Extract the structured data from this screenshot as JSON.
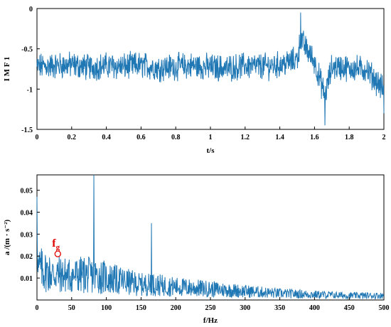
{
  "chart_data": [
    {
      "type": "line",
      "title": "",
      "xlabel": "t/s",
      "ylabel": "I M F 1",
      "xlim": [
        0,
        2
      ],
      "ylim": [
        -1.5,
        0
      ],
      "xticks": [
        "0",
        "0.2",
        "0.4",
        "0.6",
        "0.8",
        "1",
        "1.2",
        "1.4",
        "1.6",
        "1.8",
        "2"
      ],
      "yticks": [
        "0",
        "-0.5",
        "-1",
        "-1.5"
      ],
      "grid": false,
      "series": [
        {
          "color": "#1f77b4",
          "x": [
            0,
            0.1,
            0.2,
            0.3,
            0.4,
            0.5,
            0.6,
            0.7,
            0.8,
            0.9,
            1.0,
            1.1,
            1.2,
            1.3,
            1.4,
            1.5,
            1.52,
            1.6,
            1.66,
            1.7,
            1.8,
            1.9,
            2.0
          ],
          "values": [
            -0.72,
            -0.7,
            -0.68,
            -0.74,
            -0.7,
            -0.72,
            -0.68,
            -0.75,
            -0.72,
            -0.7,
            -0.74,
            -0.76,
            -0.7,
            -0.72,
            -0.68,
            -0.55,
            -0.05,
            -0.6,
            -1.45,
            -0.72,
            -0.75,
            -0.8,
            -1.3
          ],
          "baseline": -0.72,
          "noise_amplitude": 0.35
        }
      ]
    },
    {
      "type": "line",
      "title": "",
      "xlabel": "f/Hz",
      "ylabel": "a /(m · s⁻²)",
      "xlim": [
        0,
        500
      ],
      "ylim": [
        0,
        0.057
      ],
      "xticks": [
        "0",
        "50",
        "100",
        "150",
        "200",
        "250",
        "300",
        "350",
        "400",
        "450",
        "500"
      ],
      "yticks": [
        "0.01",
        "0.02",
        "0.03",
        "0.04",
        "0.05"
      ],
      "grid": false,
      "series": [
        {
          "color": "#1f77b4",
          "x": [
            0,
            1,
            5,
            20,
            50,
            80,
            82,
            84,
            100,
            150,
            163,
            165,
            167,
            200,
            250,
            300,
            350,
            400,
            450,
            500
          ],
          "values": [
            0.047,
            0.03,
            0.014,
            0.012,
            0.011,
            0.012,
            0.057,
            0.012,
            0.01,
            0.007,
            0.007,
            0.035,
            0.007,
            0.006,
            0.005,
            0.004,
            0.003,
            0.0025,
            0.002,
            0.002
          ]
        }
      ],
      "annotations": [
        {
          "text": "f",
          "subscript": "g",
          "x": 30,
          "y": 0.021,
          "color": "#e00000",
          "marker": "open-circle"
        }
      ]
    }
  ]
}
